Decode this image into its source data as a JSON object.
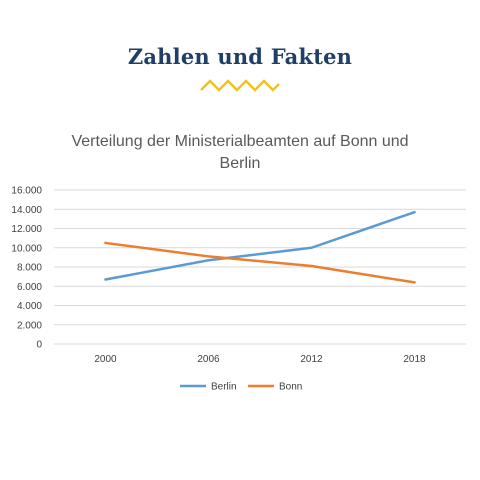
{
  "page": {
    "heading": "Zahlen und Fakten",
    "accent_color": "#f2c21b",
    "heading_color": "#1f3f66"
  },
  "chart_data": {
    "type": "line",
    "title_lines": [
      "Verteilung der Ministerialbeamten auf Bonn und",
      "Berlin"
    ],
    "categories": [
      "2000",
      "2006",
      "2012",
      "2018"
    ],
    "y_tick_labels": [
      "0",
      "2.000",
      "4.000",
      "6.000",
      "8.000",
      "10.000",
      "12.000",
      "14.000",
      "16.000"
    ],
    "ylim": [
      0,
      16000
    ],
    "y_step": 2000,
    "grid": true,
    "legend_position": "bottom",
    "series": [
      {
        "name": "Berlin",
        "color": "#5b9bd5",
        "values": [
          6700,
          8700,
          10000,
          13700
        ]
      },
      {
        "name": "Bonn",
        "color": "#ed7d31",
        "values": [
          10500,
          9100,
          8100,
          6400
        ]
      }
    ]
  }
}
